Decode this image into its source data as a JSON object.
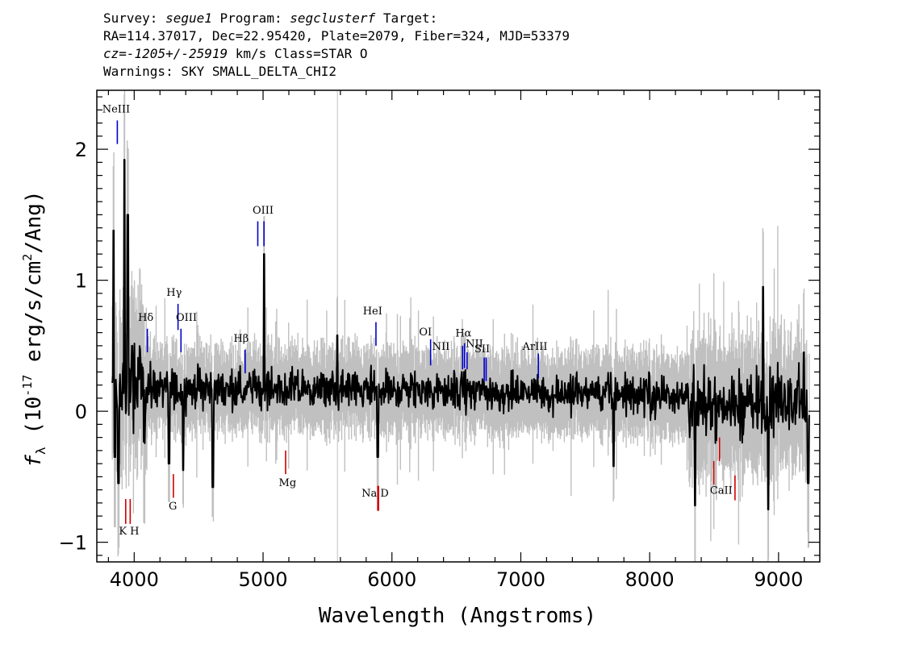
{
  "header": {
    "survey_label": "Survey:",
    "survey": "segue1",
    "program_label": "Program:",
    "program": "segclusterf",
    "target_label": "Target:",
    "coords": "RA=114.37017, Dec=22.95420, Plate=2079, Fiber=324, MJD=53379",
    "cz_label": "cz=",
    "cz_value": "-1205+/-25919",
    "cz_unit": "km/s Class=STAR O",
    "warnings": "Warnings: SKY SMALL_DELTA_CHI2"
  },
  "colors": {
    "flux": "#000000",
    "error": "#c0c0c0",
    "emission": "#0000cc",
    "absorption": "#cc0000"
  },
  "chart_data": {
    "type": "line",
    "xlabel": "Wavelength (Angstroms)",
    "ylabel": "f_λ (10^-17 erg/s/cm^2/Ang)",
    "ylabel_parts": {
      "f": "f",
      "sub": "λ",
      "pre": " (10",
      "exp": "-17",
      "mid": " erg/s/cm",
      "exp2": "2",
      "post": "/Ang)"
    },
    "xlim": [
      3710,
      9320
    ],
    "ylim": [
      -1.15,
      2.45
    ],
    "xticks": [
      4000,
      5000,
      6000,
      7000,
      8000,
      9000
    ],
    "xtick_labels": [
      "4000",
      "5000",
      "6000",
      "7000",
      "8000",
      "9000"
    ],
    "yticks": [
      -1,
      0,
      1,
      2
    ],
    "ytick_labels": [
      "−1",
      "0",
      "1",
      "2"
    ],
    "marker_line_x": 5577,
    "emission_lines": [
      {
        "label": "NeIII",
        "x": 3869,
        "y0": 2.04,
        "y1": 2.22,
        "lx": 3860,
        "ly": 2.28
      },
      {
        "label": "Hδ",
        "x": 4102,
        "y0": 0.45,
        "y1": 0.63,
        "lx": 4090,
        "ly": 0.69
      },
      {
        "label": "Hγ",
        "x": 4340,
        "y0": 0.62,
        "y1": 0.82,
        "lx": 4310,
        "ly": 0.88
      },
      {
        "label": "OIII",
        "x": 4363,
        "y0": 0.45,
        "y1": 0.63,
        "lx": 4405,
        "ly": 0.69
      },
      {
        "label": "Hβ",
        "x": 4861,
        "y0": 0.29,
        "y1": 0.47,
        "lx": 4830,
        "ly": 0.53
      },
      {
        "label": "OIII",
        "x": 4959,
        "y0": 1.26,
        "y1": 1.45,
        "lx": 5000,
        "ly": 1.51
      },
      {
        "label": "OIII",
        "x": 5007,
        "y0": 1.26,
        "y1": 1.45,
        "lx": null,
        "ly": null
      },
      {
        "label": "HeI",
        "x": 5876,
        "y0": 0.5,
        "y1": 0.68,
        "lx": 5850,
        "ly": 0.74
      },
      {
        "label": "OI",
        "x": 6300,
        "y0": 0.35,
        "y1": 0.55,
        "lx": 6260,
        "ly": 0.58
      },
      {
        "label": "NII",
        "x": 6548,
        "y0": 0.32,
        "y1": 0.5,
        "lx": 6380,
        "ly": 0.47
      },
      {
        "label": "Hα",
        "x": 6563,
        "y0": 0.33,
        "y1": 0.52,
        "lx": 6555,
        "ly": 0.57
      },
      {
        "label": "NII",
        "x": 6583,
        "y0": 0.32,
        "y1": 0.45,
        "lx": 6640,
        "ly": 0.49
      },
      {
        "label": "SII",
        "x": 6716,
        "y0": 0.23,
        "y1": 0.41,
        "lx": 6700,
        "ly": 0.45
      },
      {
        "label": "SII",
        "x": 6731,
        "y0": 0.23,
        "y1": 0.41,
        "lx": null,
        "ly": null
      },
      {
        "label": "ArIII",
        "x": 7136,
        "y0": 0.25,
        "y1": 0.44,
        "lx": 7110,
        "ly": 0.47
      }
    ],
    "absorption_lines": [
      {
        "label": "K",
        "x": 3934,
        "y0": -0.67,
        "y1": -0.86
      },
      {
        "label": "H",
        "x": 3969,
        "y0": -0.67,
        "y1": -0.86
      },
      {
        "label": "G",
        "x": 4304,
        "y0": -0.48,
        "y1": -0.66
      },
      {
        "label": "Mg",
        "x": 5175,
        "y0": -0.3,
        "y1": -0.48
      },
      {
        "label": "Na",
        "x": 5890,
        "y0": -0.57,
        "y1": -0.76
      },
      {
        "label": "D",
        "x": 5896,
        "y0": -0.57,
        "y1": -0.76
      },
      {
        "label": "CaII",
        "x": 8498,
        "y0": -0.38,
        "y1": -0.56
      },
      {
        "label": "CaII",
        "x": 8542,
        "y0": -0.2,
        "y1": -0.38
      },
      {
        "label": "CaII",
        "x": 8662,
        "y0": -0.49,
        "y1": -0.68
      }
    ],
    "absorption_labels": [
      {
        "label": "K H",
        "x": 3960,
        "y": -0.94
      },
      {
        "label": "G",
        "x": 4300,
        "y": -0.75
      },
      {
        "label": "Mg",
        "x": 5190,
        "y": -0.57
      },
      {
        "label": "Na  D",
        "x": 5870,
        "y": -0.65
      },
      {
        "label": "CaII",
        "x": 8555,
        "y": -0.63
      }
    ],
    "spectrum_features": [
      {
        "x": 3840,
        "y": 1.38
      },
      {
        "x": 3850,
        "y": -0.35
      },
      {
        "x": 3878,
        "y": -0.55
      },
      {
        "x": 3925,
        "y": 1.92
      },
      {
        "x": 3950,
        "y": 1.5
      },
      {
        "x": 3985,
        "y": 0.5
      },
      {
        "x": 4270,
        "y": -0.4
      },
      {
        "x": 4380,
        "y": -0.45
      },
      {
        "x": 4610,
        "y": -0.58
      },
      {
        "x": 5007,
        "y": 1.2
      },
      {
        "x": 5040,
        "y": 0.3
      },
      {
        "x": 5577,
        "y": 0.58
      },
      {
        "x": 5890,
        "y": -0.35
      },
      {
        "x": 6560,
        "y": 0.3
      },
      {
        "x": 7720,
        "y": -0.42
      },
      {
        "x": 8352,
        "y": -0.72
      },
      {
        "x": 8880,
        "y": 0.95
      },
      {
        "x": 8920,
        "y": -0.75
      },
      {
        "x": 9195,
        "y": 0.45
      },
      {
        "x": 9230,
        "y": -0.55
      }
    ]
  }
}
